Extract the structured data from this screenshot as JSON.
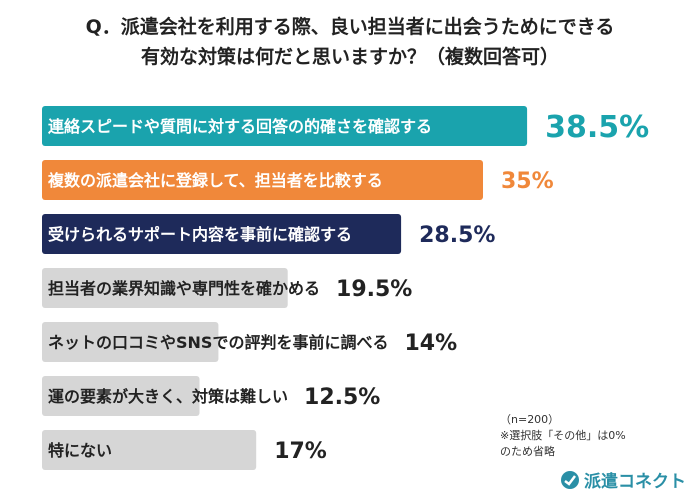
{
  "question": {
    "line1": "Q．派遣会社を利用する際、良い担当者に出会うためにできる",
    "line2": "有効な対策は何だと思いますか？（複数回答可）"
  },
  "chart_data": {
    "type": "bar",
    "orientation": "horizontal",
    "categories": [
      "連絡スピードや質問に対する回答の的確さを確認する",
      "複数の派遣会社に登録して、担当者を比較する",
      "受けられるサポート内容を事前に確認する",
      "担当者の業界知識や専門性を確かめる",
      "ネットの口コミやSNSでの評判を事前に調べる",
      "運の要素が大きく、対策は難しい",
      "特にない"
    ],
    "values": [
      38.5,
      35,
      28.5,
      19.5,
      14,
      12.5,
      17
    ],
    "value_labels": [
      "38.5%",
      "35%",
      "28.5%",
      "19.5%",
      "14%",
      "12.5%",
      "17%"
    ],
    "bar_colors": [
      "#1aa3ad",
      "#f0883a",
      "#1e2a5a",
      "#d6d6d6",
      "#d6d6d6",
      "#d6d6d6",
      "#d6d6d6"
    ],
    "label_colors": [
      "#1aa3ad",
      "#f0883a",
      "#1e2a5a",
      "#222222",
      "#222222",
      "#222222",
      "#222222"
    ],
    "text_colors": [
      "#ffffff",
      "#ffffff",
      "#ffffff",
      "#222222",
      "#222222",
      "#222222",
      "#222222"
    ],
    "grid": false,
    "legend": "none"
  },
  "note": {
    "n": "（n=200）",
    "line2": "※選択肢「その他」は0%",
    "line3": "のため省略"
  },
  "brand": {
    "name": "派遣コネクト",
    "icon": "connect-logo-icon",
    "color": "#2a8fa6"
  }
}
